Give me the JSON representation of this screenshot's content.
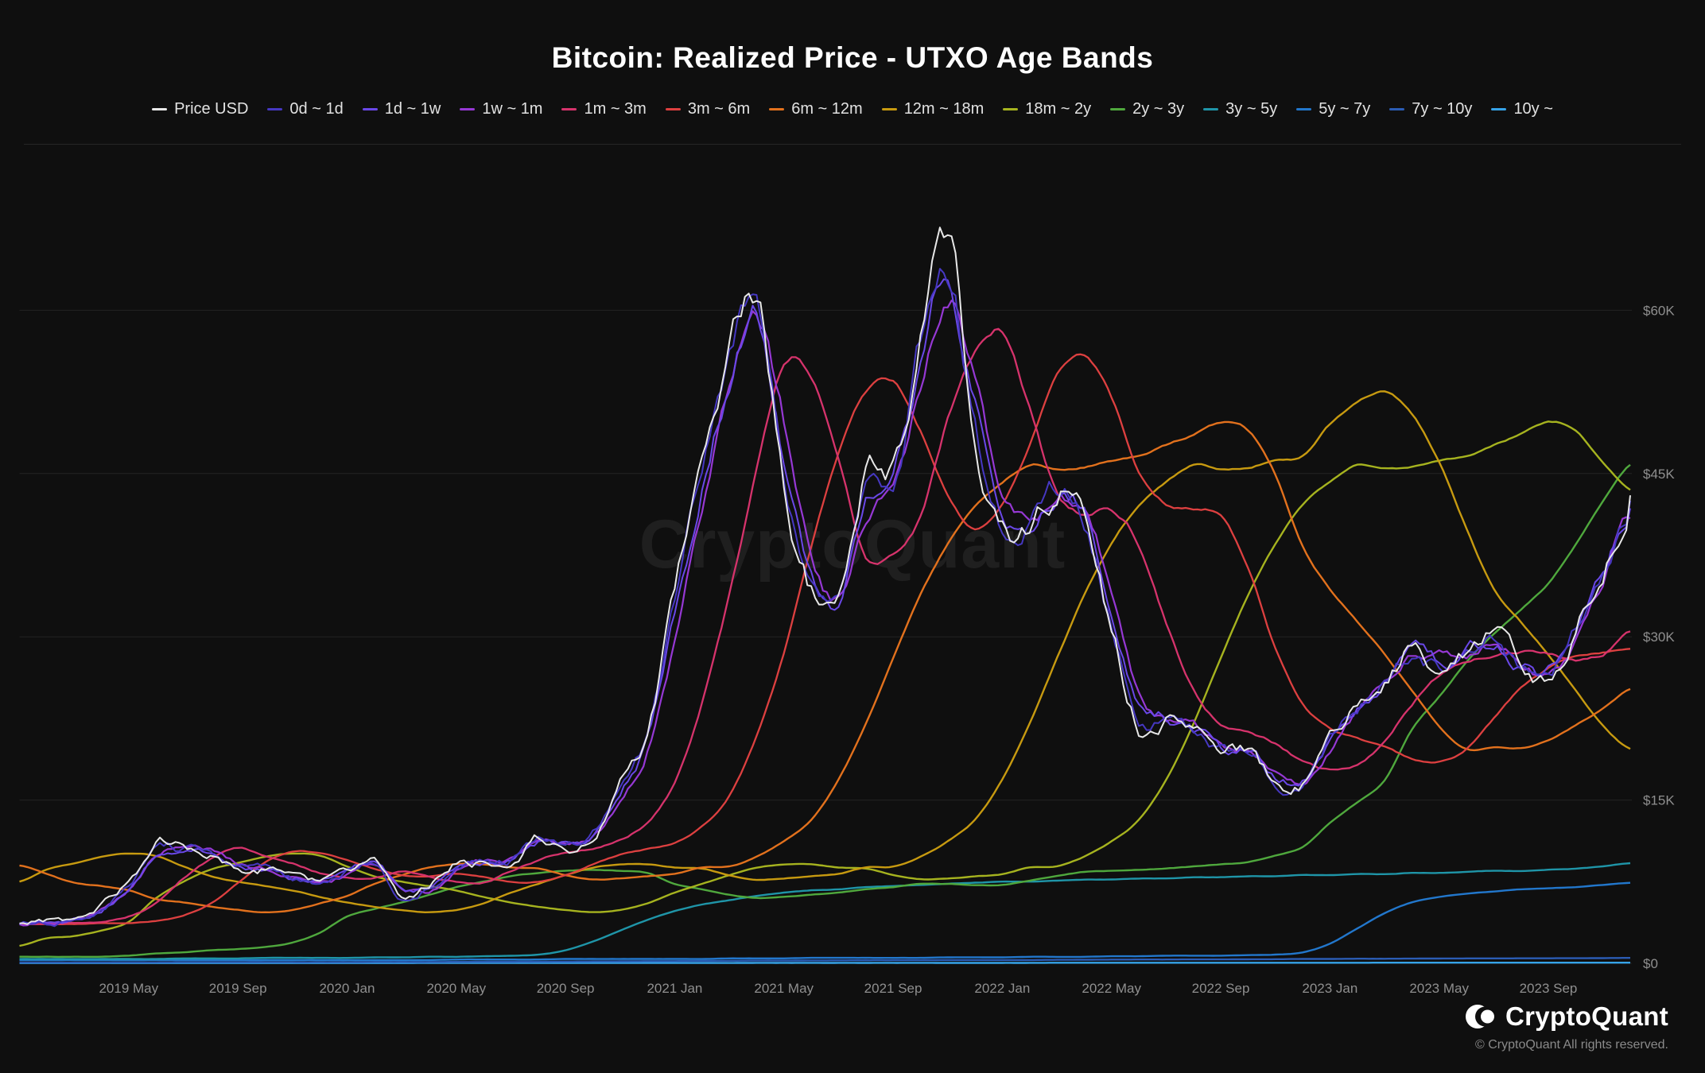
{
  "page": {
    "title": "Bitcoin: Realized Price - UTXO Age Bands"
  },
  "watermark": "CryptoQuant",
  "footer": {
    "brand_name": "CryptoQuant",
    "copyright": "© CryptoQuant All rights reserved."
  },
  "chart_data": {
    "type": "line",
    "title": "Bitcoin: Realized Price - UTXO Age Bands",
    "background": "#0f0f0f",
    "grid": "horizontal",
    "legend_position": "top",
    "x_unit": "month",
    "x_range": [
      "2019-01",
      "2023-12"
    ],
    "x_note": "each series holds one value per month from 2019-01 through 2023-12",
    "x_tick_labels": [
      "2019 May",
      "2019 Sep",
      "2020 Jan",
      "2020 May",
      "2020 Sep",
      "2021 Jan",
      "2021 May",
      "2021 Sep",
      "2022 Jan",
      "2022 May",
      "2022 Sep",
      "2023 Jan",
      "2023 May",
      "2023 Sep"
    ],
    "x_tick_month_indices": [
      4,
      8,
      12,
      16,
      20,
      24,
      28,
      32,
      36,
      40,
      44,
      48,
      52,
      56
    ],
    "y_axis": {
      "side": "right",
      "unit": "USD",
      "value_scale": "thousands",
      "ticks": [
        0,
        15,
        30,
        45,
        60
      ],
      "tick_labels": [
        "$0",
        "$15K",
        "$30K",
        "$45K",
        "$60K"
      ],
      "ylim": [
        0,
        74.6
      ]
    },
    "series": [
      {
        "name": "Price USD",
        "color": "#e8e8e8",
        "width": 2.0,
        "jitter": 1.0,
        "values": [
          3.6,
          3.8,
          4.0,
          5.2,
          7.3,
          11.0,
          10.6,
          10.3,
          8.6,
          8.6,
          7.6,
          7.2,
          8.6,
          9.4,
          6.0,
          7.1,
          9.2,
          9.3,
          9.6,
          11.6,
          10.7,
          11.9,
          16.5,
          21.5,
          34.0,
          46.0,
          56.0,
          62.0,
          44.0,
          34.5,
          33.0,
          45.5,
          45.0,
          57.5,
          66.0,
          49.0,
          40.0,
          40.5,
          43.5,
          41.0,
          31.0,
          22.0,
          22.5,
          21.5,
          19.5,
          19.5,
          16.8,
          16.8,
          21.0,
          23.8,
          26.5,
          29.0,
          27.3,
          28.8,
          29.8,
          27.0,
          26.5,
          31.5,
          37.0,
          43.0
        ]
      },
      {
        "name": "0d ~ 1d",
        "color": "#4638c2",
        "width": 2.0,
        "jitter": 0.85,
        "values": [
          3.6,
          3.8,
          4.0,
          5.1,
          7.2,
          10.8,
          10.5,
          10.2,
          8.6,
          8.5,
          7.6,
          7.2,
          8.5,
          9.3,
          6.1,
          7.0,
          9.1,
          9.3,
          9.5,
          11.5,
          10.7,
          11.8,
          16.2,
          21.2,
          33.5,
          45.5,
          55.5,
          61.0,
          44.5,
          34.6,
          33.1,
          45.0,
          44.8,
          57.0,
          65.0,
          49.2,
          40.1,
          40.4,
          43.2,
          41.0,
          31.3,
          22.2,
          22.4,
          21.5,
          19.5,
          19.4,
          16.9,
          16.8,
          20.8,
          23.6,
          26.3,
          28.8,
          27.2,
          28.7,
          29.6,
          27.1,
          26.4,
          31.2,
          36.6,
          42.5
        ]
      },
      {
        "name": "1d ~ 1w",
        "color": "#6a48e8",
        "width": 2.0,
        "jitter": 0.7,
        "values": [
          3.6,
          3.7,
          3.9,
          4.9,
          6.9,
          10.2,
          10.6,
          10.3,
          8.9,
          8.6,
          7.7,
          7.3,
          8.3,
          9.2,
          6.6,
          6.9,
          8.9,
          9.3,
          9.5,
          11.2,
          10.9,
          11.6,
          15.5,
          20.5,
          31.5,
          43.5,
          53.5,
          60.0,
          47.0,
          35.5,
          33.2,
          43.0,
          44.9,
          55.0,
          63.5,
          51.5,
          41.5,
          40.3,
          42.8,
          41.3,
          32.5,
          23.5,
          22.4,
          21.7,
          19.8,
          19.5,
          17.2,
          16.8,
          20.2,
          23.2,
          25.9,
          28.6,
          27.4,
          28.5,
          29.5,
          27.4,
          26.5,
          30.5,
          35.8,
          41.8
        ]
      },
      {
        "name": "1w ~ 1m",
        "color": "#9638d4",
        "width": 2.2,
        "jitter": 0.55,
        "values": [
          3.6,
          3.7,
          3.9,
          4.8,
          6.6,
          9.7,
          10.7,
          10.4,
          9.2,
          8.6,
          7.9,
          7.3,
          8.1,
          9.1,
          7.2,
          6.7,
          8.5,
          9.3,
          9.5,
          10.9,
          11.0,
          11.5,
          14.9,
          19.7,
          29.6,
          41.8,
          52.5,
          58.6,
          49.6,
          37.8,
          33.5,
          41.1,
          45.2,
          53.1,
          61.1,
          53.9,
          43.2,
          40.3,
          42.4,
          41.9,
          34.5,
          25.2,
          22.3,
          21.9,
          20.2,
          19.5,
          17.7,
          16.8,
          19.5,
          22.8,
          25.6,
          28.1,
          27.9,
          28.3,
          29.5,
          28.0,
          26.7,
          29.8,
          35.1,
          40.9
        ]
      },
      {
        "name": "1m ~ 3m",
        "color": "#d6336c",
        "width": 2.3,
        "jitter": 0.16,
        "values": [
          3.6,
          3.6,
          3.7,
          3.8,
          4.3,
          5.5,
          7.8,
          9.6,
          10.6,
          9.8,
          9.2,
          8.3,
          7.8,
          7.8,
          8.4,
          8.0,
          7.5,
          7.4,
          8.5,
          9.4,
          10.2,
          10.6,
          11.4,
          13.0,
          16.6,
          24.0,
          33.8,
          45.3,
          55.0,
          54.0,
          46.2,
          37.2,
          37.7,
          41.2,
          50.0,
          56.0,
          58.0,
          51.0,
          43.2,
          41.3,
          41.7,
          38.5,
          31.3,
          25.2,
          22.0,
          21.2,
          20.2,
          18.6,
          17.7,
          18.2,
          20.5,
          23.8,
          26.4,
          27.6,
          28.4,
          28.6,
          28.5,
          27.8,
          28.3,
          30.5
        ]
      },
      {
        "name": "3m ~ 6m",
        "color": "#dd4040",
        "width": 2.3,
        "jitter": 0.08,
        "values": [
          3.6,
          3.6,
          3.6,
          3.7,
          3.7,
          3.9,
          4.4,
          5.5,
          7.4,
          9.3,
          10.3,
          10.1,
          9.5,
          8.7,
          8.1,
          8.0,
          8.2,
          7.9,
          7.5,
          7.5,
          8.1,
          9.1,
          10.0,
          10.5,
          11.1,
          12.6,
          15.4,
          20.9,
          28.5,
          38.3,
          46.9,
          52.5,
          53.5,
          49.0,
          43.0,
          40.0,
          42.3,
          47.6,
          54.0,
          56.0,
          52.0,
          45.2,
          42.2,
          41.7,
          41.1,
          36.3,
          28.9,
          23.9,
          21.6,
          20.7,
          19.9,
          18.8,
          18.5,
          19.7,
          22.5,
          25.3,
          27.1,
          28.2,
          28.6,
          28.9
        ]
      },
      {
        "name": "6m ~ 12m",
        "color": "#e2711d",
        "width": 2.4,
        "jitter": 0.05,
        "values": [
          9.0,
          8.2,
          7.4,
          7.1,
          6.7,
          5.9,
          5.6,
          5.2,
          4.9,
          4.7,
          4.9,
          5.5,
          6.2,
          7.3,
          8.1,
          8.8,
          9.1,
          9.1,
          8.8,
          8.7,
          8.1,
          7.7,
          7.8,
          8.0,
          8.2,
          8.8,
          8.9,
          9.8,
          11.2,
          13.2,
          16.9,
          22.0,
          28.0,
          33.8,
          38.5,
          42.1,
          44.2,
          45.8,
          45.4,
          45.6,
          46.2,
          46.6,
          47.6,
          48.6,
          49.7,
          49.0,
          44.9,
          38.3,
          34.4,
          31.4,
          28.4,
          25.1,
          21.8,
          19.7,
          19.9,
          19.8,
          20.5,
          21.9,
          23.4,
          25.2
        ]
      },
      {
        "name": "12m ~ 18m",
        "color": "#c79a10",
        "width": 2.4,
        "jitter": 0.05,
        "values": [
          7.5,
          8.6,
          9.2,
          9.8,
          10.1,
          9.9,
          8.9,
          8.0,
          7.5,
          7.1,
          6.7,
          6.1,
          5.6,
          5.2,
          4.9,
          4.7,
          4.9,
          5.5,
          6.5,
          7.3,
          8.1,
          8.8,
          9.1,
          9.1,
          8.8,
          8.7,
          8.1,
          7.7,
          7.8,
          8.0,
          8.2,
          8.8,
          8.9,
          9.8,
          11.2,
          13.2,
          16.9,
          22.0,
          28.0,
          33.8,
          38.5,
          42.1,
          44.2,
          45.8,
          45.4,
          45.6,
          46.2,
          46.6,
          49.5,
          51.5,
          52.5,
          50.5,
          46.0,
          40.0,
          34.4,
          31.4,
          28.4,
          25.1,
          21.8,
          19.7
        ]
      },
      {
        "name": "18m ~ 2y",
        "color": "#a6b31f",
        "width": 2.4,
        "jitter": 0.04,
        "values": [
          1.6,
          2.3,
          2.5,
          3.0,
          3.8,
          6.0,
          7.5,
          8.6,
          9.2,
          9.8,
          10.1,
          9.9,
          8.9,
          8.0,
          7.5,
          7.1,
          6.7,
          6.1,
          5.6,
          5.2,
          4.9,
          4.7,
          4.9,
          5.5,
          6.5,
          7.3,
          8.1,
          8.8,
          9.1,
          9.1,
          8.8,
          8.7,
          8.1,
          7.7,
          7.8,
          8.0,
          8.2,
          8.8,
          8.9,
          9.8,
          11.2,
          13.2,
          16.9,
          22.0,
          28.0,
          33.8,
          38.5,
          42.1,
          44.2,
          45.8,
          45.4,
          45.6,
          46.2,
          46.6,
          47.6,
          48.6,
          49.7,
          49.0,
          46.0,
          43.5
        ]
      },
      {
        "name": "2y ~ 3y",
        "color": "#4fa83d",
        "width": 2.4,
        "jitter": 0.04,
        "values": [
          0.6,
          0.6,
          0.6,
          0.6,
          0.7,
          0.9,
          1.0,
          1.2,
          1.3,
          1.5,
          1.9,
          2.8,
          4.3,
          5.0,
          5.6,
          6.3,
          7.0,
          7.5,
          8.0,
          8.3,
          8.5,
          8.6,
          8.5,
          8.3,
          7.3,
          6.8,
          6.3,
          6.0,
          6.1,
          6.3,
          6.5,
          6.8,
          7.0,
          7.3,
          7.3,
          7.2,
          7.2,
          7.6,
          8.0,
          8.4,
          8.5,
          8.6,
          8.7,
          8.9,
          9.1,
          9.3,
          9.9,
          10.7,
          12.9,
          14.8,
          16.8,
          21.5,
          24.5,
          27.7,
          30.3,
          32.5,
          34.9,
          38.5,
          42.5,
          45.8
        ]
      },
      {
        "name": "3y ~ 5y",
        "color": "#1f95a8",
        "width": 2.4,
        "jitter": 0.03,
        "values": [
          0.4,
          0.4,
          0.4,
          0.4,
          0.4,
          0.4,
          0.45,
          0.45,
          0.45,
          0.5,
          0.5,
          0.5,
          0.5,
          0.55,
          0.55,
          0.6,
          0.6,
          0.65,
          0.7,
          0.8,
          1.2,
          2.0,
          3.0,
          4.0,
          4.8,
          5.4,
          5.8,
          6.2,
          6.5,
          6.7,
          6.8,
          7.0,
          7.1,
          7.2,
          7.3,
          7.4,
          7.5,
          7.5,
          7.6,
          7.7,
          7.7,
          7.8,
          7.8,
          7.9,
          7.9,
          8.0,
          8.0,
          8.1,
          8.1,
          8.2,
          8.2,
          8.3,
          8.3,
          8.4,
          8.5,
          8.5,
          8.6,
          8.7,
          8.9,
          9.2
        ]
      },
      {
        "name": "5y ~ 7y",
        "color": "#2277cc",
        "width": 2.4,
        "jitter": 0.02,
        "values": [
          0.3,
          0.3,
          0.3,
          0.3,
          0.3,
          0.3,
          0.3,
          0.3,
          0.3,
          0.3,
          0.3,
          0.3,
          0.3,
          0.3,
          0.3,
          0.3,
          0.35,
          0.35,
          0.35,
          0.35,
          0.4,
          0.4,
          0.4,
          0.4,
          0.4,
          0.4,
          0.45,
          0.45,
          0.45,
          0.5,
          0.5,
          0.5,
          0.5,
          0.5,
          0.55,
          0.55,
          0.55,
          0.6,
          0.6,
          0.6,
          0.65,
          0.65,
          0.7,
          0.7,
          0.7,
          0.75,
          0.8,
          1.0,
          1.8,
          3.2,
          4.6,
          5.6,
          6.1,
          6.4,
          6.6,
          6.8,
          6.9,
          7.0,
          7.2,
          7.4
        ]
      },
      {
        "name": "7y ~ 10y",
        "color": "#2b5cb4",
        "width": 2.4,
        "jitter": 0.01,
        "values": [
          0.08,
          0.08,
          0.08,
          0.08,
          0.09,
          0.09,
          0.1,
          0.1,
          0.1,
          0.1,
          0.1,
          0.1,
          0.1,
          0.12,
          0.12,
          0.12,
          0.13,
          0.14,
          0.15,
          0.15,
          0.16,
          0.17,
          0.18,
          0.2,
          0.2,
          0.22,
          0.23,
          0.25,
          0.25,
          0.26,
          0.27,
          0.28,
          0.28,
          0.29,
          0.3,
          0.3,
          0.3,
          0.3,
          0.32,
          0.33,
          0.34,
          0.35,
          0.35,
          0.36,
          0.36,
          0.37,
          0.38,
          0.4,
          0.4,
          0.42,
          0.42,
          0.43,
          0.44,
          0.45,
          0.45,
          0.46,
          0.46,
          0.47,
          0.48,
          0.5
        ]
      },
      {
        "name": "10y ~",
        "color": "#36a3e8",
        "width": 2.4,
        "jitter": 0.005,
        "values": [
          0.02,
          0.02,
          0.02,
          0.02,
          0.02,
          0.02,
          0.02,
          0.02,
          0.02,
          0.02,
          0.02,
          0.02,
          0.02,
          0.02,
          0.02,
          0.03,
          0.03,
          0.03,
          0.03,
          0.03,
          0.03,
          0.03,
          0.03,
          0.03,
          0.03,
          0.03,
          0.03,
          0.04,
          0.04,
          0.04,
          0.04,
          0.04,
          0.04,
          0.04,
          0.04,
          0.04,
          0.04,
          0.04,
          0.05,
          0.05,
          0.05,
          0.05,
          0.05,
          0.05,
          0.05,
          0.05,
          0.05,
          0.05,
          0.05,
          0.05,
          0.06,
          0.06,
          0.06,
          0.06,
          0.06,
          0.06,
          0.06,
          0.06,
          0.06,
          0.06
        ]
      }
    ]
  }
}
